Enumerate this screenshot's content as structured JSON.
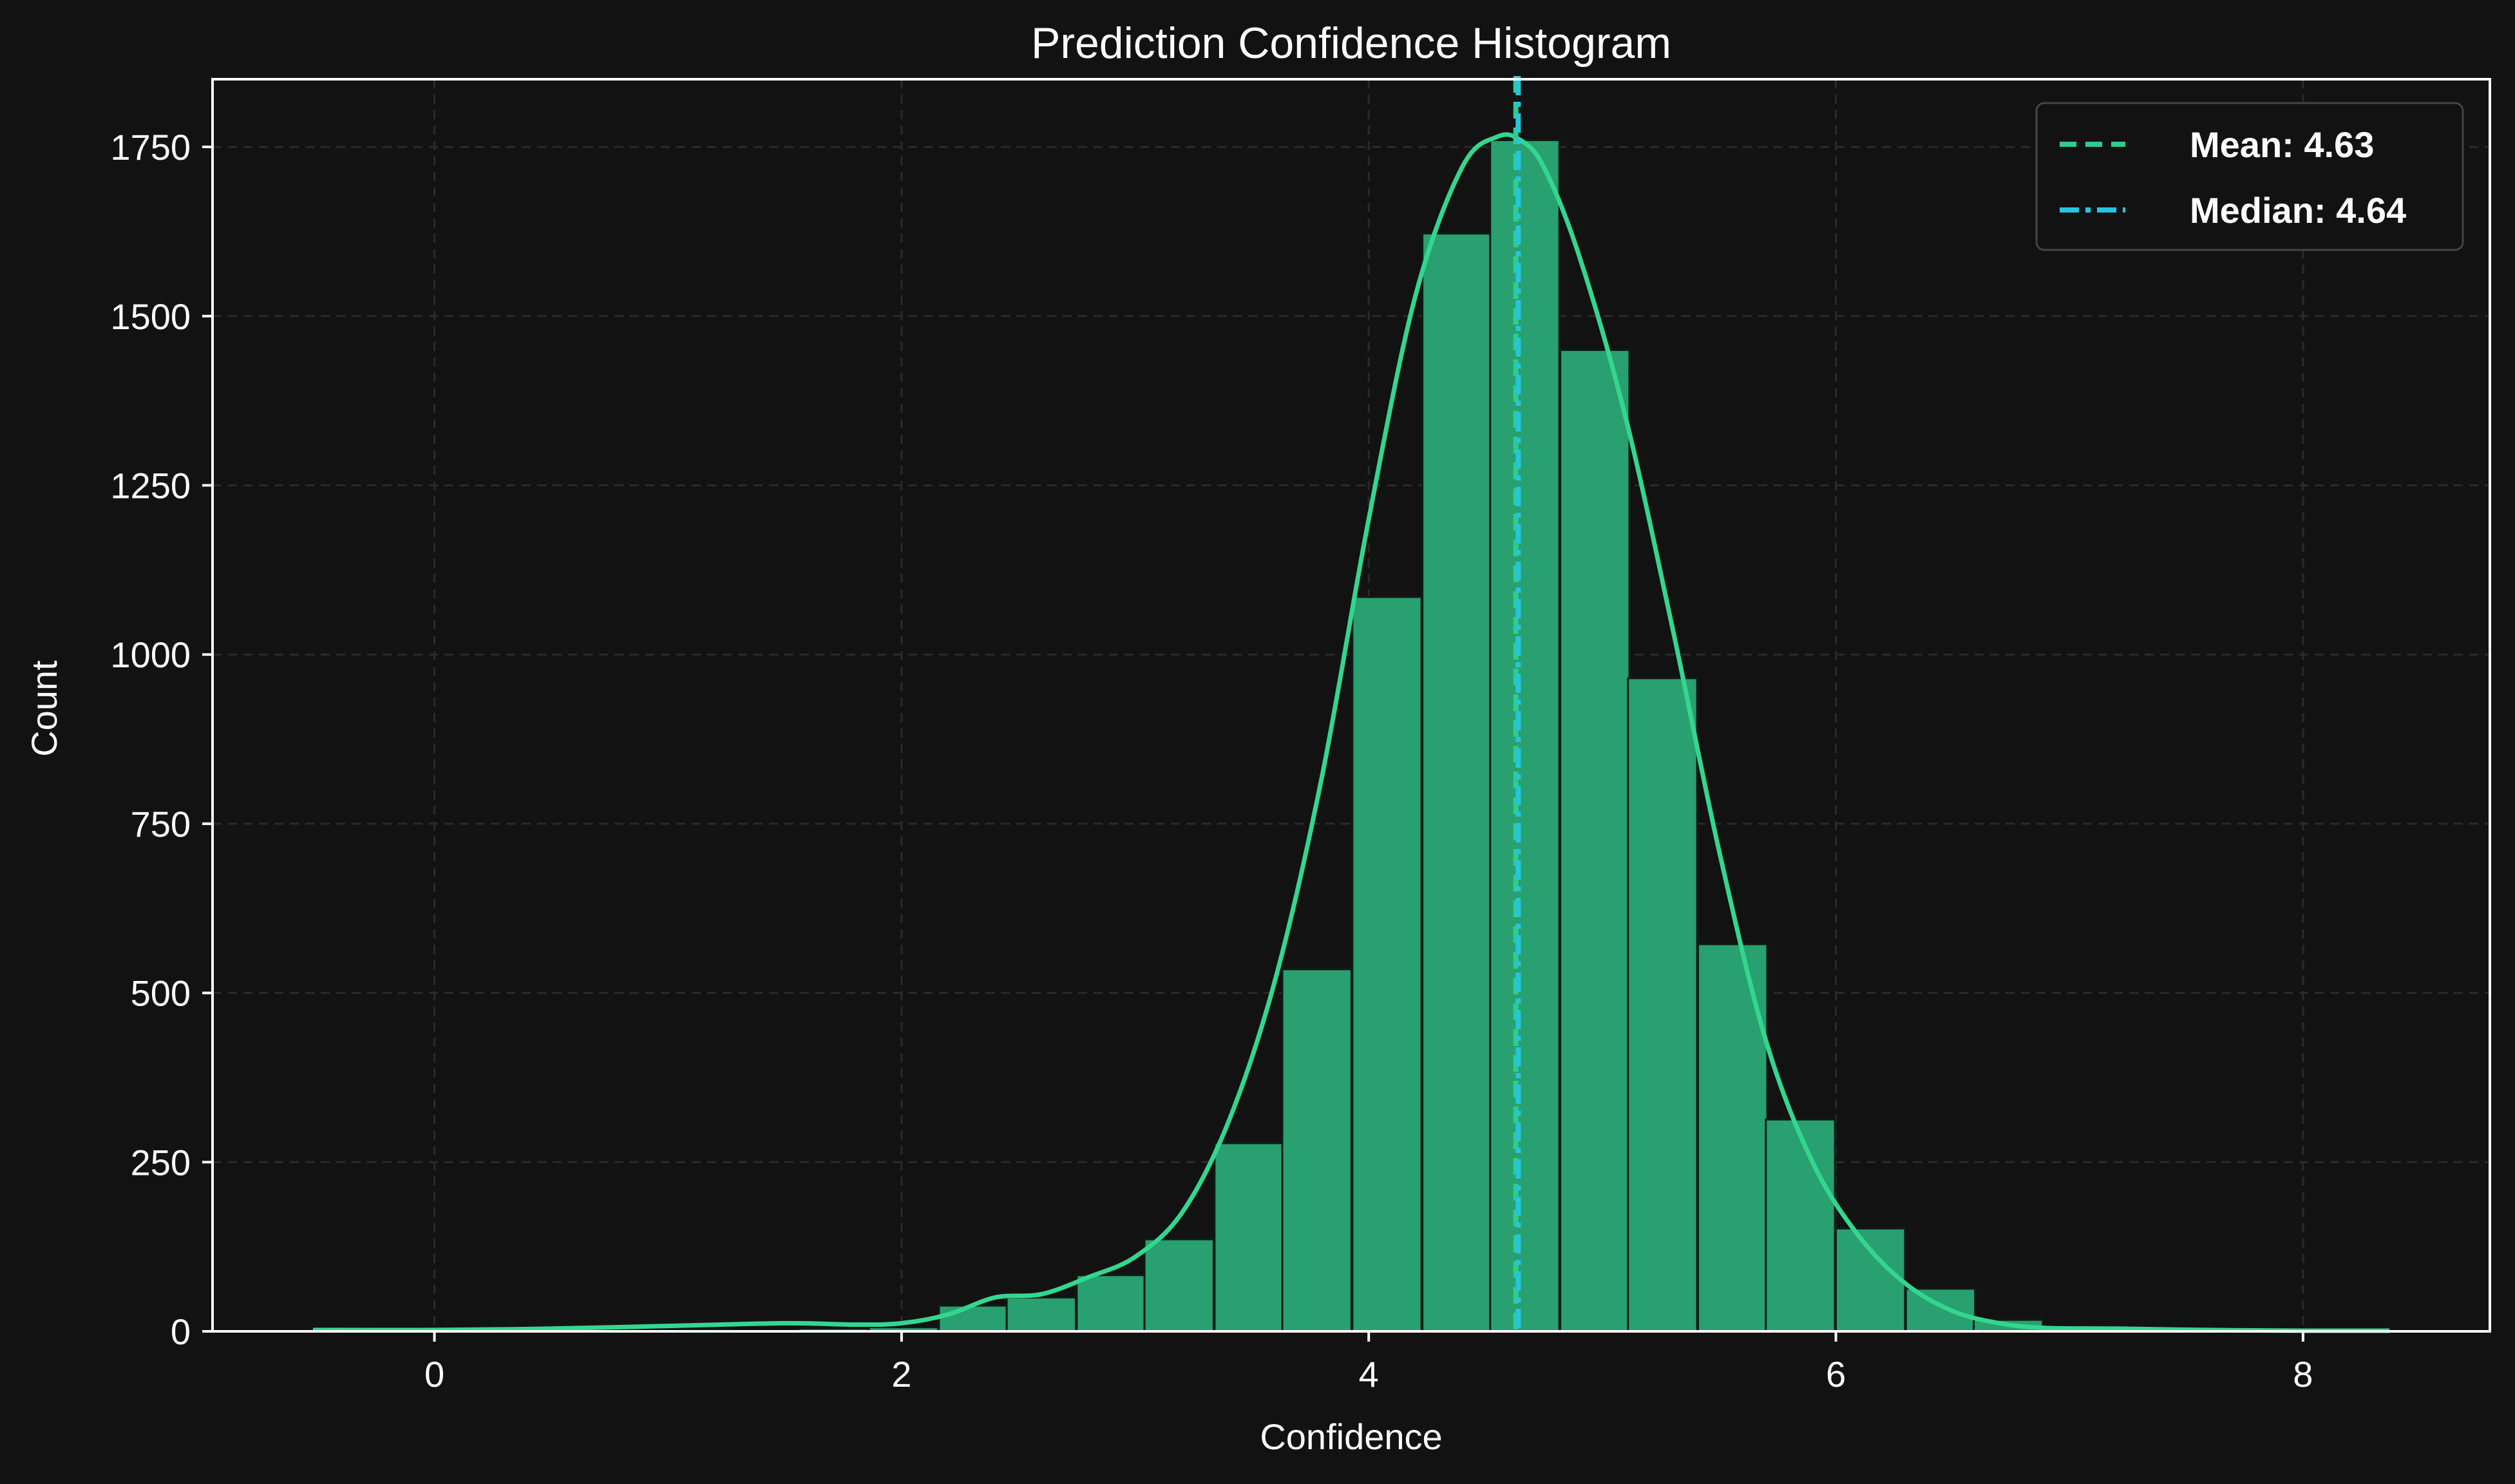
{
  "chart_data": {
    "type": "bar",
    "title": "Prediction Confidence Histogram",
    "xlabel": "Confidence",
    "ylabel": "Count",
    "xlim": [
      -0.95,
      8.8
    ],
    "ylim": [
      0,
      1850
    ],
    "x_ticks": [
      0,
      2,
      4,
      6,
      8
    ],
    "y_ticks": [
      0,
      250,
      500,
      750,
      1000,
      1250,
      1500,
      1750
    ],
    "grid": true,
    "legend_position": "top-right",
    "bin_width": 0.296,
    "bins": [
      {
        "x0": -0.52,
        "count": 1
      },
      {
        "x0": 0.38,
        "count": 2
      },
      {
        "x0": 0.97,
        "count": 3
      },
      {
        "x0": 1.56,
        "count": 4
      },
      {
        "x0": 1.86,
        "count": 6
      },
      {
        "x0": 2.16,
        "count": 38
      },
      {
        "x0": 2.45,
        "count": 50
      },
      {
        "x0": 2.75,
        "count": 83
      },
      {
        "x0": 3.04,
        "count": 136
      },
      {
        "x0": 3.34,
        "count": 278
      },
      {
        "x0": 3.63,
        "count": 535
      },
      {
        "x0": 3.93,
        "count": 1085
      },
      {
        "x0": 4.23,
        "count": 1622
      },
      {
        "x0": 4.52,
        "count": 1760
      },
      {
        "x0": 4.82,
        "count": 1450
      },
      {
        "x0": 5.11,
        "count": 965
      },
      {
        "x0": 5.41,
        "count": 572
      },
      {
        "x0": 5.7,
        "count": 313
      },
      {
        "x0": 6.0,
        "count": 152
      },
      {
        "x0": 6.3,
        "count": 63
      },
      {
        "x0": 6.59,
        "count": 17
      },
      {
        "x0": 6.89,
        "count": 3
      },
      {
        "x0": 7.48,
        "count": 1
      }
    ],
    "kde": {
      "x": [
        -0.52,
        0.0,
        0.5,
        1.0,
        1.5,
        1.8,
        2.0,
        2.2,
        2.4,
        2.6,
        2.8,
        3.0,
        3.2,
        3.4,
        3.6,
        3.8,
        4.0,
        4.2,
        4.4,
        4.55,
        4.65,
        4.75,
        4.9,
        5.1,
        5.3,
        5.5,
        5.7,
        5.9,
        6.1,
        6.3,
        6.5,
        6.7,
        6.9,
        7.2,
        7.6,
        8.0,
        8.37
      ],
      "y": [
        2,
        2,
        4,
        8,
        12,
        10,
        12,
        25,
        50,
        55,
        80,
        110,
        175,
        310,
        520,
        820,
        1200,
        1530,
        1720,
        1765,
        1760,
        1720,
        1590,
        1350,
        1040,
        710,
        430,
        250,
        140,
        70,
        30,
        12,
        5,
        4,
        2,
        1,
        1
      ]
    },
    "series": [
      {
        "name": "Mean: 4.63",
        "value": 4.63,
        "style": "dashed",
        "color": "#2ecc8f"
      },
      {
        "name": "Median: 4.64",
        "value": 4.64,
        "style": "dashdot",
        "color": "#22c6de"
      }
    ],
    "colors": {
      "background": "#121212",
      "bar_fill": "#29a070",
      "bar_edge": "#0e1c16",
      "kde_line": "#34d68f",
      "axis": "#ffffff",
      "grid": "#2a2a2a"
    }
  }
}
